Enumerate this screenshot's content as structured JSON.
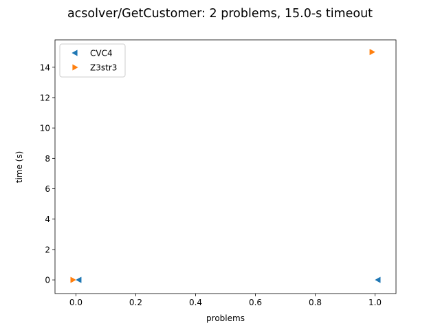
{
  "chart_data": {
    "type": "scatter",
    "title": "acsolver/GetCustomer: 2 problems, 15.0-s timeout",
    "xlabel": "problems",
    "ylabel": "time (s)",
    "xlim": [
      -0.07,
      1.07
    ],
    "ylim": [
      -0.9,
      15.8
    ],
    "xticks": [
      0.0,
      0.2,
      0.4,
      0.6,
      0.8,
      1.0
    ],
    "xtick_labels": [
      "0.0",
      "0.2",
      "0.4",
      "0.6",
      "0.8",
      "1.0"
    ],
    "yticks": [
      0,
      2,
      4,
      6,
      8,
      10,
      12,
      14
    ],
    "ytick_labels": [
      "0",
      "2",
      "4",
      "6",
      "8",
      "10",
      "12",
      "14"
    ],
    "grid": false,
    "legend_position": "top-left",
    "series": [
      {
        "name": "CVC4",
        "color": "#1f77b4",
        "marker": "triangle-left",
        "x": [
          0.01,
          1.01
        ],
        "y": [
          0.0,
          0.0
        ]
      },
      {
        "name": "Z3str3",
        "color": "#ff7f0e",
        "marker": "triangle-right",
        "x": [
          -0.01,
          0.99
        ],
        "y": [
          0.0,
          15.0
        ]
      }
    ]
  }
}
